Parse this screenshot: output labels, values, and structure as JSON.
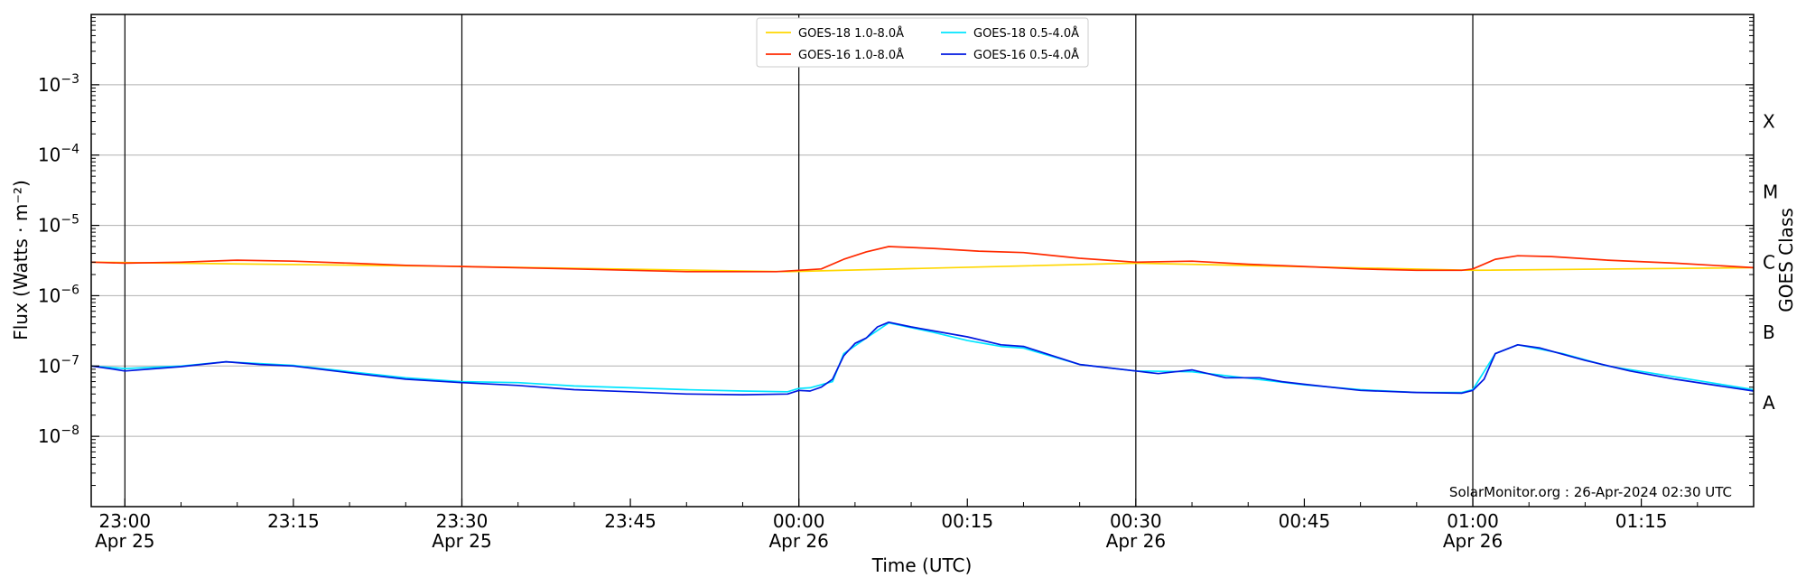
{
  "chart_data": {
    "type": "line",
    "xlabel": "Time (UTC)",
    "ylabel": "Flux (Watts · m⁻²)",
    "right_label": "GOES Class",
    "y_scale": "log",
    "ylim": [
      1e-09,
      0.01
    ],
    "xlim": [
      "2024-04-25T22:57",
      "2024-04-26T01:25"
    ],
    "grid": "horizontal at each decade",
    "legend_position": "top-center",
    "credit": "SolarMonitor.org : 26-Apr-2024 02:30 UTC",
    "y_ticks": [
      {
        "value": 1e-08,
        "base": "10",
        "exp": "−8"
      },
      {
        "value": 1e-07,
        "base": "10",
        "exp": "−7"
      },
      {
        "value": 1e-06,
        "base": "10",
        "exp": "−6"
      },
      {
        "value": 1e-05,
        "base": "10",
        "exp": "−5"
      },
      {
        "value": 0.0001,
        "base": "10",
        "exp": "−4"
      },
      {
        "value": 0.001,
        "base": "10",
        "exp": "−3"
      }
    ],
    "classes": [
      {
        "label": "A",
        "value": 3e-08
      },
      {
        "label": "B",
        "value": 3e-07
      },
      {
        "label": "C",
        "value": 3e-06
      },
      {
        "label": "M",
        "value": 3e-05
      },
      {
        "label": "X",
        "value": 0.0003
      }
    ],
    "x_ticks": [
      {
        "time": "2024-04-25T23:00",
        "line1": "23:00",
        "line2": "Apr 25",
        "vline": true
      },
      {
        "time": "2024-04-25T23:15",
        "line1": "23:15",
        "line2": "",
        "vline": false
      },
      {
        "time": "2024-04-25T23:30",
        "line1": "23:30",
        "line2": "Apr 25",
        "vline": true
      },
      {
        "time": "2024-04-25T23:45",
        "line1": "23:45",
        "line2": "",
        "vline": false
      },
      {
        "time": "2024-04-26T00:00",
        "line1": "00:00",
        "line2": "Apr 26",
        "vline": true
      },
      {
        "time": "2024-04-26T00:15",
        "line1": "00:15",
        "line2": "",
        "vline": false
      },
      {
        "time": "2024-04-26T00:30",
        "line1": "00:30",
        "line2": "Apr 26",
        "vline": true
      },
      {
        "time": "2024-04-26T00:45",
        "line1": "00:45",
        "line2": "",
        "vline": false
      },
      {
        "time": "2024-04-26T01:00",
        "line1": "01:00",
        "line2": "Apr 26",
        "vline": true
      },
      {
        "time": "2024-04-26T01:15",
        "line1": "01:15",
        "line2": "",
        "vline": false
      }
    ],
    "series": [
      {
        "name": "GOES-18 1.0-8.0Å",
        "color": "#ffd700",
        "points": [
          [
            "2024-04-25T22:57",
            3e-06
          ],
          [
            "2024-04-25T23:30",
            2.6e-06
          ],
          [
            "2024-04-25T23:59",
            2.2e-06
          ],
          [
            "2024-04-26T00:30",
            2.9e-06
          ],
          [
            "2024-04-26T01:00",
            2.3e-06
          ],
          [
            "2024-04-26T01:25",
            2.5e-06
          ]
        ]
      },
      {
        "name": "GOES-16 1.0-8.0Å",
        "color": "#ff2a00",
        "points": [
          [
            "2024-04-25T22:57",
            3e-06
          ],
          [
            "2024-04-25T23:00",
            2.9e-06
          ],
          [
            "2024-04-25T23:05",
            3e-06
          ],
          [
            "2024-04-25T23:10",
            3.2e-06
          ],
          [
            "2024-04-25T23:15",
            3.1e-06
          ],
          [
            "2024-04-25T23:20",
            2.9e-06
          ],
          [
            "2024-04-25T23:25",
            2.7e-06
          ],
          [
            "2024-04-25T23:30",
            2.6e-06
          ],
          [
            "2024-04-25T23:40",
            2.4e-06
          ],
          [
            "2024-04-25T23:50",
            2.2e-06
          ],
          [
            "2024-04-25T23:58",
            2.2e-06
          ],
          [
            "2024-04-26T00:00",
            2.3e-06
          ],
          [
            "2024-04-26T00:02",
            2.4e-06
          ],
          [
            "2024-04-26T00:04",
            3.3e-06
          ],
          [
            "2024-04-26T00:06",
            4.2e-06
          ],
          [
            "2024-04-26T00:08",
            5e-06
          ],
          [
            "2024-04-26T00:12",
            4.7e-06
          ],
          [
            "2024-04-26T00:16",
            4.3e-06
          ],
          [
            "2024-04-26T00:20",
            4.1e-06
          ],
          [
            "2024-04-26T00:25",
            3.4e-06
          ],
          [
            "2024-04-26T00:30",
            3e-06
          ],
          [
            "2024-04-26T00:35",
            3.1e-06
          ],
          [
            "2024-04-26T00:40",
            2.8e-06
          ],
          [
            "2024-04-26T00:45",
            2.6e-06
          ],
          [
            "2024-04-26T00:50",
            2.4e-06
          ],
          [
            "2024-04-26T00:55",
            2.3e-06
          ],
          [
            "2024-04-26T00:59",
            2.3e-06
          ],
          [
            "2024-04-26T01:00",
            2.4e-06
          ],
          [
            "2024-04-26T01:02",
            3.3e-06
          ],
          [
            "2024-04-26T01:04",
            3.7e-06
          ],
          [
            "2024-04-26T01:07",
            3.6e-06
          ],
          [
            "2024-04-26T01:12",
            3.2e-06
          ],
          [
            "2024-04-26T01:18",
            2.9e-06
          ],
          [
            "2024-04-26T01:25",
            2.5e-06
          ]
        ]
      },
      {
        "name": "GOES-18 0.5-4.0Å",
        "color": "#00e5ff",
        "points": [
          [
            "2024-04-25T22:57",
            1e-07
          ],
          [
            "2024-04-25T23:00",
            9.2e-08
          ],
          [
            "2024-04-25T23:05",
            1e-07
          ],
          [
            "2024-04-25T23:09",
            1.15e-07
          ],
          [
            "2024-04-25T23:15",
            1.02e-07
          ],
          [
            "2024-04-25T23:20",
            8.3e-08
          ],
          [
            "2024-04-25T23:25",
            6.8e-08
          ],
          [
            "2024-04-25T23:30",
            6e-08
          ],
          [
            "2024-04-25T23:35",
            5.8e-08
          ],
          [
            "2024-04-25T23:40",
            5.2e-08
          ],
          [
            "2024-04-25T23:45",
            4.9e-08
          ],
          [
            "2024-04-25T23:50",
            4.6e-08
          ],
          [
            "2024-04-25T23:55",
            4.4e-08
          ],
          [
            "2024-04-25T23:59",
            4.3e-08
          ],
          [
            "2024-04-26T00:00",
            4.8e-08
          ],
          [
            "2024-04-26T00:01",
            4.9e-08
          ],
          [
            "2024-04-26T00:03",
            6e-08
          ],
          [
            "2024-04-26T00:04",
            1.5e-07
          ],
          [
            "2024-04-26T00:06",
            2.5e-07
          ],
          [
            "2024-04-26T00:08",
            4.1e-07
          ],
          [
            "2024-04-26T00:12",
            3e-07
          ],
          [
            "2024-04-26T00:15",
            2.3e-07
          ],
          [
            "2024-04-26T00:18",
            1.9e-07
          ],
          [
            "2024-04-26T00:20",
            1.8e-07
          ],
          [
            "2024-04-26T00:25",
            1.05e-07
          ],
          [
            "2024-04-26T00:30",
            8.5e-08
          ],
          [
            "2024-04-26T00:35",
            8.3e-08
          ],
          [
            "2024-04-26T00:40",
            6.7e-08
          ],
          [
            "2024-04-26T00:45",
            5.4e-08
          ],
          [
            "2024-04-26T00:50",
            4.6e-08
          ],
          [
            "2024-04-26T00:55",
            4.2e-08
          ],
          [
            "2024-04-26T00:59",
            4.2e-08
          ],
          [
            "2024-04-26T01:00",
            4.6e-08
          ],
          [
            "2024-04-26T01:02",
            1.5e-07
          ],
          [
            "2024-04-26T01:04",
            2e-07
          ],
          [
            "2024-04-26T01:08",
            1.5e-07
          ],
          [
            "2024-04-26T01:12",
            1e-07
          ],
          [
            "2024-04-26T01:18",
            7e-08
          ],
          [
            "2024-04-26T01:25",
            4.6e-08
          ]
        ]
      },
      {
        "name": "GOES-16 0.5-4.0Å",
        "color": "#0018e0",
        "points": [
          [
            "2024-04-25T22:57",
            1e-07
          ],
          [
            "2024-04-25T22:59",
            9e-08
          ],
          [
            "2024-04-25T23:00",
            8.5e-08
          ],
          [
            "2024-04-25T23:05",
            9.8e-08
          ],
          [
            "2024-04-25T23:09",
            1.15e-07
          ],
          [
            "2024-04-25T23:12",
            1.05e-07
          ],
          [
            "2024-04-25T23:15",
            1e-07
          ],
          [
            "2024-04-25T23:20",
            8e-08
          ],
          [
            "2024-04-25T23:25",
            6.5e-08
          ],
          [
            "2024-04-25T23:30",
            5.8e-08
          ],
          [
            "2024-04-25T23:35",
            5.3e-08
          ],
          [
            "2024-04-25T23:40",
            4.6e-08
          ],
          [
            "2024-04-25T23:45",
            4.3e-08
          ],
          [
            "2024-04-25T23:50",
            4e-08
          ],
          [
            "2024-04-25T23:55",
            3.9e-08
          ],
          [
            "2024-04-25T23:59",
            4e-08
          ],
          [
            "2024-04-26T00:00",
            4.5e-08
          ],
          [
            "2024-04-26T00:01",
            4.4e-08
          ],
          [
            "2024-04-26T00:02",
            5e-08
          ],
          [
            "2024-04-26T00:03",
            6.5e-08
          ],
          [
            "2024-04-26T00:04",
            1.4e-07
          ],
          [
            "2024-04-26T00:05",
            2.1e-07
          ],
          [
            "2024-04-26T00:06",
            2.5e-07
          ],
          [
            "2024-04-26T00:07",
            3.6e-07
          ],
          [
            "2024-04-26T00:08",
            4.2e-07
          ],
          [
            "2024-04-26T00:10",
            3.6e-07
          ],
          [
            "2024-04-26T00:15",
            2.6e-07
          ],
          [
            "2024-04-26T00:18",
            2e-07
          ],
          [
            "2024-04-26T00:20",
            1.9e-07
          ],
          [
            "2024-04-26T00:22",
            1.5e-07
          ],
          [
            "2024-04-26T00:25",
            1.05e-07
          ],
          [
            "2024-04-26T00:30",
            8.5e-08
          ],
          [
            "2024-04-26T00:32",
            7.8e-08
          ],
          [
            "2024-04-26T00:35",
            8.8e-08
          ],
          [
            "2024-04-26T00:38",
            6.8e-08
          ],
          [
            "2024-04-26T00:41",
            6.8e-08
          ],
          [
            "2024-04-26T00:43",
            6e-08
          ],
          [
            "2024-04-26T00:45",
            5.5e-08
          ],
          [
            "2024-04-26T00:50",
            4.5e-08
          ],
          [
            "2024-04-26T00:55",
            4.2e-08
          ],
          [
            "2024-04-26T00:59",
            4.1e-08
          ],
          [
            "2024-04-26T01:00",
            4.5e-08
          ],
          [
            "2024-04-26T01:01",
            6.5e-08
          ],
          [
            "2024-04-26T01:02",
            1.5e-07
          ],
          [
            "2024-04-26T01:04",
            2e-07
          ],
          [
            "2024-04-26T01:06",
            1.8e-07
          ],
          [
            "2024-04-26T01:10",
            1.2e-07
          ],
          [
            "2024-04-26T01:14",
            8.5e-08
          ],
          [
            "2024-04-26T01:18",
            6.5e-08
          ],
          [
            "2024-04-26T01:22",
            5.2e-08
          ],
          [
            "2024-04-26T01:25",
            4.4e-08
          ]
        ]
      }
    ]
  }
}
